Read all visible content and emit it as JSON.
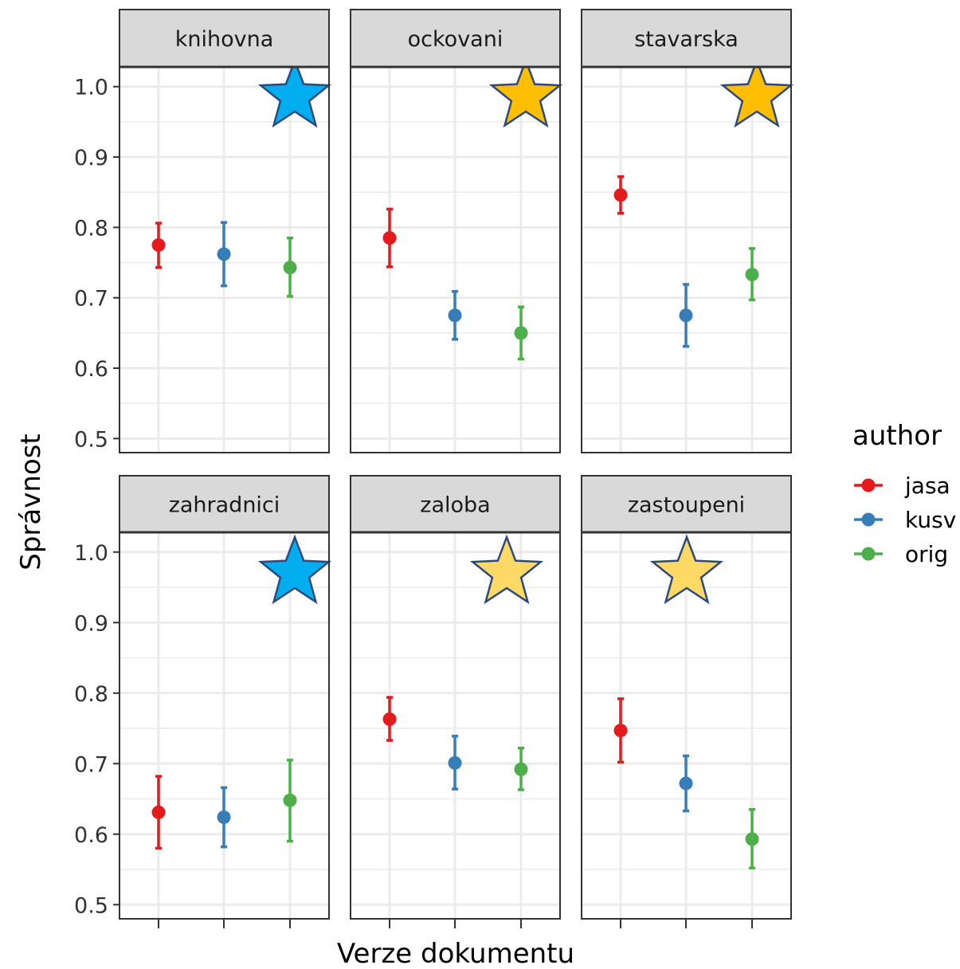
{
  "chart_data": {
    "type": "scatter",
    "xlabel": "Verze dokumentu",
    "ylabel": "Správnost",
    "ylim": [
      0.48,
      1.028
    ],
    "yticks": [
      0.5,
      0.6,
      0.7,
      0.8,
      0.9,
      1.0
    ],
    "ytick_labels": [
      "0.5",
      "0.6",
      "0.7",
      "0.8",
      "0.9",
      "1.0"
    ],
    "grid": true,
    "legend": {
      "title": "author",
      "placement": "right",
      "entries": [
        {
          "name": "jasa",
          "color": "#e41a1c"
        },
        {
          "name": "kusv",
          "color": "#377eb8"
        },
        {
          "name": "orig",
          "color": "#4daf4a"
        }
      ]
    },
    "panels": [
      {
        "title": "knihovna",
        "star": {
          "position": "orig",
          "color": "#00aeef"
        },
        "points": [
          {
            "author": "jasa",
            "value": 0.775,
            "lower": 0.743,
            "upper": 0.806
          },
          {
            "author": "kusv",
            "value": 0.762,
            "lower": 0.717,
            "upper": 0.807
          },
          {
            "author": "orig",
            "value": 0.743,
            "lower": 0.702,
            "upper": 0.785
          }
        ]
      },
      {
        "title": "ockovani",
        "star": {
          "position": "orig",
          "color": "#ffbf00"
        },
        "points": [
          {
            "author": "jasa",
            "value": 0.785,
            "lower": 0.744,
            "upper": 0.826
          },
          {
            "author": "kusv",
            "value": 0.675,
            "lower": 0.641,
            "upper": 0.709
          },
          {
            "author": "orig",
            "value": 0.65,
            "lower": 0.613,
            "upper": 0.687
          }
        ]
      },
      {
        "title": "stavarska",
        "star": {
          "position": "orig",
          "color": "#ffbf00"
        },
        "points": [
          {
            "author": "jasa",
            "value": 0.846,
            "lower": 0.82,
            "upper": 0.872
          },
          {
            "author": "kusv",
            "value": 0.675,
            "lower": 0.631,
            "upper": 0.719
          },
          {
            "author": "orig",
            "value": 0.733,
            "lower": 0.697,
            "upper": 0.77
          }
        ]
      },
      {
        "title": "zahradnici",
        "star": {
          "position": "orig",
          "color": "#00aeef"
        },
        "points": [
          {
            "author": "jasa",
            "value": 0.631,
            "lower": 0.58,
            "upper": 0.682
          },
          {
            "author": "kusv",
            "value": 0.624,
            "lower": 0.582,
            "upper": 0.666
          },
          {
            "author": "orig",
            "value": 0.648,
            "lower": 0.59,
            "upper": 0.705
          }
        ]
      },
      {
        "title": "zaloba",
        "star": {
          "position": "kusv-orig",
          "color": "#ffd966"
        },
        "points": [
          {
            "author": "jasa",
            "value": 0.763,
            "lower": 0.733,
            "upper": 0.794
          },
          {
            "author": "kusv",
            "value": 0.701,
            "lower": 0.664,
            "upper": 0.739
          },
          {
            "author": "orig",
            "value": 0.692,
            "lower": 0.663,
            "upper": 0.722
          }
        ]
      },
      {
        "title": "zastoupeni",
        "star": {
          "position": "kusv",
          "color": "#ffd966"
        },
        "points": [
          {
            "author": "jasa",
            "value": 0.747,
            "lower": 0.702,
            "upper": 0.792
          },
          {
            "author": "kusv",
            "value": 0.672,
            "lower": 0.633,
            "upper": 0.711
          },
          {
            "author": "orig",
            "value": 0.593,
            "lower": 0.552,
            "upper": 0.635
          }
        ]
      }
    ]
  }
}
